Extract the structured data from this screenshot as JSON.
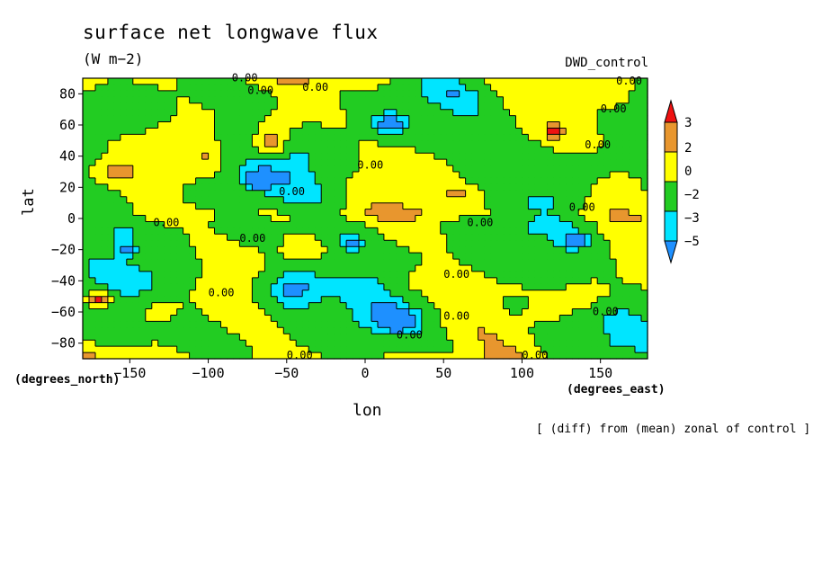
{
  "chart_data": {
    "type": "heatmap",
    "title": "surface net longwave flux",
    "units": "(W m−2)",
    "run_label": "DWD_control",
    "xlabel": "lon",
    "ylabel": "lat",
    "x_unit_label": "(degrees_east)",
    "y_unit_label": "(degrees_north)",
    "note": "[ (diff) from (mean) zonal of control ]",
    "xlim": [
      -180,
      180
    ],
    "ylim": [
      -90,
      90
    ],
    "x_ticks": [
      -150,
      -100,
      -50,
      0,
      50,
      100,
      150
    ],
    "y_ticks": [
      -80,
      -60,
      -40,
      -20,
      0,
      20,
      40,
      60,
      80
    ],
    "contour_label": "0.00",
    "colorbar": {
      "levels": [
        -5,
        -3,
        -2,
        0,
        2,
        3
      ],
      "tick_labels": [
        "3",
        "2",
        "0",
        "−2",
        "−3",
        "−5"
      ],
      "colors": [
        "#1e90ff",
        "#00e5ff",
        "#22cc22",
        "#ffff00",
        "#e8962e",
        "#ee1111"
      ]
    }
  }
}
